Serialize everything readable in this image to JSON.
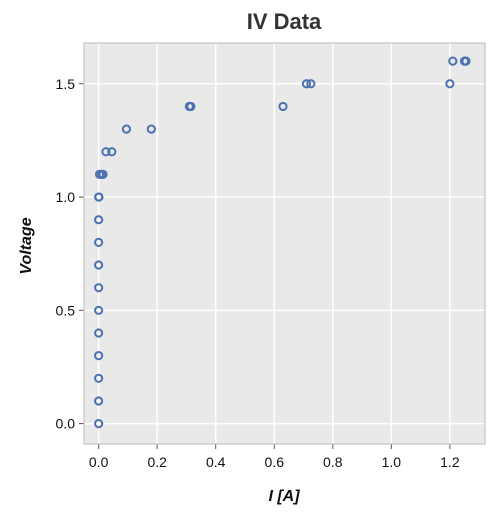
{
  "chart_data": {
    "type": "scatter",
    "title": "IV Data",
    "xlabel": "I [A]",
    "ylabel": "Voltage",
    "xlim": [
      -0.05,
      1.32
    ],
    "ylim": [
      -0.09,
      1.68
    ],
    "xticks": [
      0.0,
      0.2,
      0.4,
      0.6,
      0.8,
      1.0,
      1.2
    ],
    "xtick_labels": [
      "0.0",
      "0.2",
      "0.4",
      "0.6",
      "0.8",
      "1.0",
      "1.2"
    ],
    "yticks": [
      0.0,
      0.5,
      1.0,
      1.5
    ],
    "ytick_labels": [
      "0.0",
      "0.5",
      "1.0",
      "1.5"
    ],
    "grid": true,
    "colors": {
      "marker": "#4c72b0",
      "plot_bg": "#e9e9e9",
      "frame": "#bbbbbb"
    },
    "series": [
      {
        "points": [
          [
            0.0,
            0.0
          ],
          [
            0.0,
            0.1
          ],
          [
            0.0,
            0.2
          ],
          [
            0.0,
            0.3
          ],
          [
            0.0,
            0.4
          ],
          [
            0.0,
            0.5
          ],
          [
            0.0,
            0.6
          ],
          [
            0.0,
            0.7
          ],
          [
            0.0,
            0.8
          ],
          [
            0.0,
            0.9
          ],
          [
            0.0,
            1.0
          ],
          [
            0.001,
            1.0
          ],
          [
            0.003,
            1.1
          ],
          [
            0.01,
            1.1
          ],
          [
            0.015,
            1.1
          ],
          [
            0.025,
            1.2
          ],
          [
            0.045,
            1.2
          ],
          [
            0.095,
            1.3
          ],
          [
            0.18,
            1.3
          ],
          [
            0.31,
            1.4
          ],
          [
            0.315,
            1.4
          ],
          [
            0.63,
            1.4
          ],
          [
            0.71,
            1.5
          ],
          [
            0.725,
            1.5
          ],
          [
            1.2,
            1.5
          ],
          [
            1.21,
            1.6
          ],
          [
            1.25,
            1.6
          ],
          [
            1.255,
            1.6
          ]
        ]
      }
    ]
  }
}
